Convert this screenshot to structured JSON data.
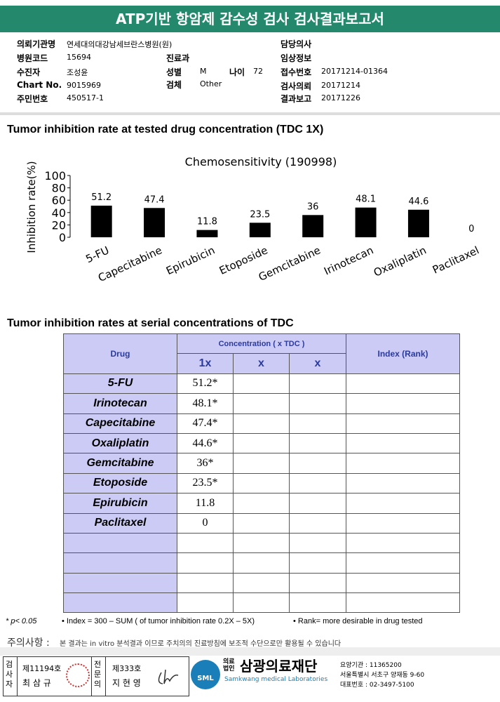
{
  "header": {
    "title": "ATP기반 항암제 감수성 검사 검사결과보고서"
  },
  "info": [
    {
      "label": "의뢰기관명",
      "value": "연세대의대강남세브란스병원(원)"
    },
    {
      "label": "담당의사"
    },
    {
      "label": "병원코드",
      "value": "15694"
    },
    {
      "label": "진료과"
    },
    {
      "label": "임상정보"
    },
    {
      "label": "수진자",
      "value": "조성윤"
    },
    {
      "label": "성별",
      "value": "M"
    },
    {
      "label": "나이",
      "value": "72"
    },
    {
      "label": "접수번호",
      "value": "20171214-01364"
    },
    {
      "label": "Chart No.",
      "value": "9015969"
    },
    {
      "label": "검체",
      "value": "Other"
    },
    {
      "label": "검사의뢰",
      "value": "20171214"
    },
    {
      "label": "주민번호",
      "value": "450517-1"
    },
    {
      "label": "결과보고",
      "value": "20171226"
    }
  ],
  "section1_title": "Tumor inhibition rate at tested drug concentration (TDC 1X)",
  "chart_data": {
    "type": "bar",
    "title": "Chemosensitivity (190998)",
    "y_label": "Inhibition rate(%)",
    "categories": [
      "5-FU",
      "Capecitabine",
      "Epirubicin",
      "Etoposide",
      "Gemcitabine",
      "Irinotecan",
      "Oxaliplatin",
      "Paclitaxel"
    ],
    "values": [
      51.2,
      47.4,
      11.8,
      23.5,
      36,
      48.1,
      44.6,
      0
    ],
    "color": "#000000",
    "ylim": [
      0,
      100
    ],
    "yticks": [
      0,
      20,
      40,
      60,
      80,
      100
    ],
    "grid": false
  },
  "section2_title": "Tumor inhibition rates at serial concentrations of TDC",
  "table": {
    "header": [
      "Drug",
      "Concentration ( x TDC )",
      "Index (Rank)"
    ],
    "subheader": [
      "1x",
      "x",
      "x"
    ],
    "rows": [
      [
        "5-FU",
        "51.2*"
      ],
      [
        "Irinotecan",
        "48.1*"
      ],
      [
        "Capecitabine",
        "47.4*"
      ],
      [
        "Oxaliplatin",
        "44.6*"
      ],
      [
        "Gemcitabine",
        "36*"
      ],
      [
        "Etoposide",
        "23.5*"
      ],
      [
        "Epirubicin",
        "11.8"
      ],
      [
        "Paclitaxel",
        "0"
      ]
    ]
  },
  "footnotes": [
    "* p< 0.05",
    "• Index = 300 – SUM ( of tumor inhibition rate 0.2X – 5X)",
    "• Rank= more desirable in drug tested"
  ],
  "notice": {
    "label": "주의사항 :",
    "text": "본 결과는 in vitro 분석결과 이므로 주치의의 진료방침에 보조적 수단으로만 활용될 수 있습니다"
  },
  "footer": {
    "tester_label": "검사자",
    "tester_no": "제11194호",
    "tester_name": "최 삼 규",
    "doctor_label": "전문의",
    "doctor_no": "제333호",
    "doctor_name": "지 현 영",
    "logo": "SML",
    "corp": "의료법인",
    "org": "삼광의료재단",
    "org_en": "Samkwang medical Laboratories",
    "code": "요양기관 : 11365200",
    "address": "서울특별시 서초구 양재동 9-60",
    "phone": "대표번호 : 02-3497-5100"
  }
}
